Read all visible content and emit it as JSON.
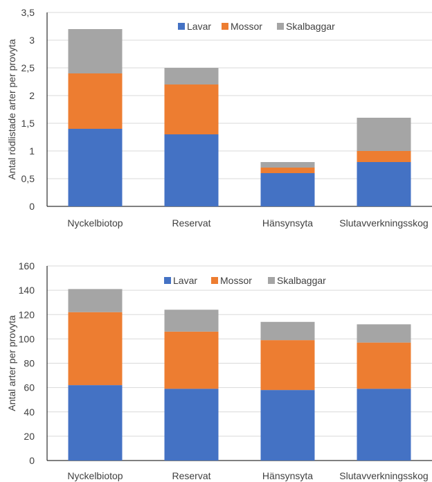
{
  "colors": {
    "lavar": "#4472C4",
    "mossor": "#ED7D31",
    "skalbaggar": "#A5A5A5",
    "grid": "#D9D9D9",
    "axis": "#000000"
  },
  "chart_data": [
    {
      "type": "bar",
      "stacked": true,
      "categories": [
        "Nyckelbiotop",
        "Reservat",
        "Hänsynsyta",
        "Slutavverkningsskog"
      ],
      "series": [
        {
          "name": "Lavar",
          "values": [
            1.4,
            1.3,
            0.6,
            0.8
          ]
        },
        {
          "name": "Mossor",
          "values": [
            1.0,
            0.9,
            0.1,
            0.2
          ]
        },
        {
          "name": "Skalbaggar",
          "values": [
            0.8,
            0.3,
            0.1,
            0.6
          ]
        }
      ],
      "ylabel": "Antal rödlistade arter per provyta",
      "ylim": [
        0,
        3.5
      ],
      "yticks": [
        "0",
        "0,5",
        "1",
        "1,5",
        "2",
        "2,5",
        "3",
        "3,5"
      ],
      "ytick_values": [
        0,
        0.5,
        1,
        1.5,
        2,
        2.5,
        3,
        3.5
      ],
      "grid": true,
      "legend": "top-center"
    },
    {
      "type": "bar",
      "stacked": true,
      "categories": [
        "Nyckelbiotop",
        "Reservat",
        "Hänsynsyta",
        "Slutavverkningsskog"
      ],
      "series": [
        {
          "name": "Lavar",
          "values": [
            62,
            59,
            58,
            59
          ]
        },
        {
          "name": "Mossor",
          "values": [
            60,
            47,
            41,
            38
          ]
        },
        {
          "name": "Skalbaggar",
          "values": [
            19,
            18,
            15,
            15
          ]
        }
      ],
      "ylabel": "Antal arter per provyta",
      "ylim": [
        0,
        160
      ],
      "yticks": [
        "0",
        "20",
        "40",
        "60",
        "80",
        "100",
        "120",
        "140",
        "160"
      ],
      "ytick_values": [
        0,
        20,
        40,
        60,
        80,
        100,
        120,
        140,
        160
      ],
      "grid": true,
      "legend": "top-center"
    }
  ]
}
